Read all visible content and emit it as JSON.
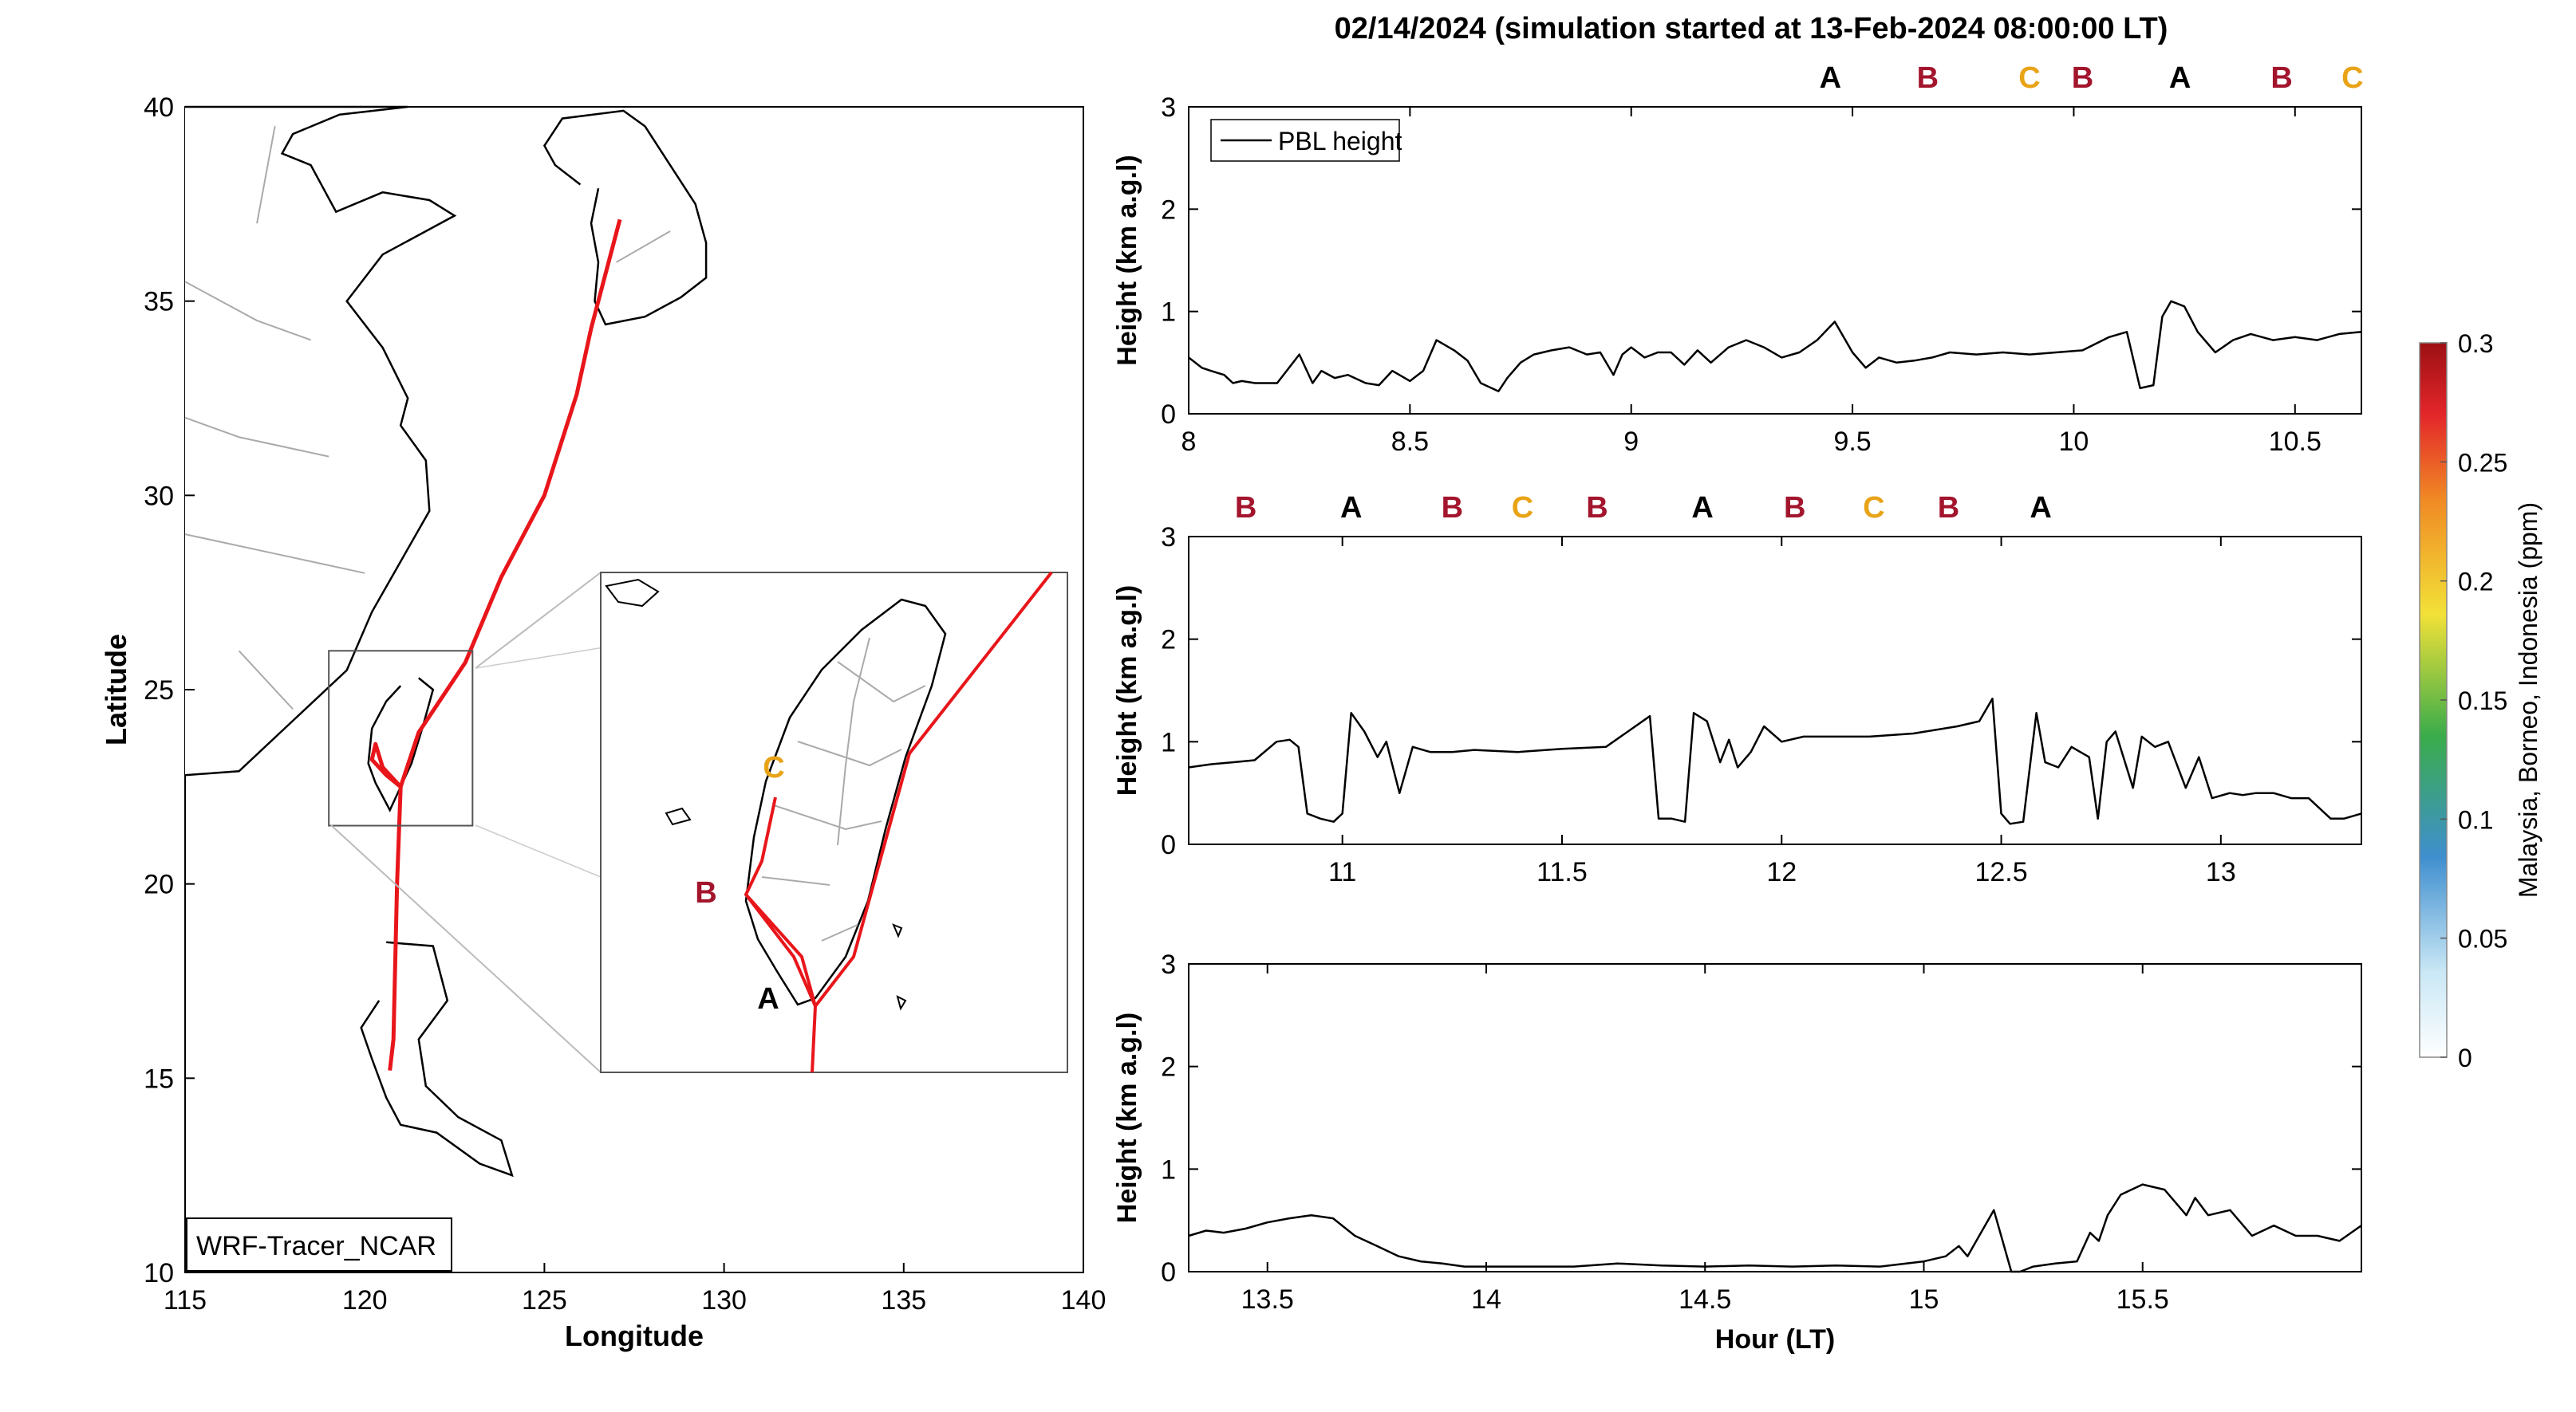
{
  "title": "02/14/2024 (simulation started at 13-Feb-2024 08:00:00 LT)",
  "map": {
    "xlabel": "Longitude",
    "ylabel": "Latitude",
    "xlim": [
      115,
      140
    ],
    "ylim": [
      10,
      40
    ],
    "xticks": [
      115,
      120,
      125,
      130,
      135,
      140
    ],
    "yticks": [
      10,
      15,
      20,
      25,
      30,
      35,
      40
    ],
    "tag": "WRF-Tracer_NCAR",
    "track_color": "#e8161b",
    "track": [
      [
        127.1,
        37.1
      ],
      [
        126.3,
        34.3
      ],
      [
        125.9,
        32.6
      ],
      [
        125.0,
        30.0
      ],
      [
        123.8,
        27.9
      ],
      [
        122.8,
        25.7
      ],
      [
        121.5,
        23.9
      ],
      [
        121.0,
        22.5
      ],
      [
        120.9,
        20.0
      ],
      [
        120.8,
        16.0
      ],
      [
        120.7,
        15.2
      ]
    ],
    "taiwan_branch": [
      [
        121.0,
        22.5
      ],
      [
        120.5,
        23.0
      ],
      [
        120.3,
        23.6
      ],
      [
        120.2,
        23.2
      ],
      [
        120.6,
        22.8
      ],
      [
        121.0,
        22.5
      ]
    ],
    "inset_box": {
      "lon": [
        119.0,
        123.0
      ],
      "lat": [
        21.5,
        26.0
      ]
    },
    "inset": {
      "markers": [
        {
          "label": "A",
          "color": "#000000"
        },
        {
          "label": "B",
          "color": "#a3152d"
        },
        {
          "label": "C",
          "color": "#e8a317"
        }
      ]
    }
  },
  "label_colors": {
    "A": "#000000",
    "B": "#a3152d",
    "C": "#e8a317"
  },
  "panels": [
    {
      "xlim": [
        8.0,
        10.65
      ],
      "xticks": [
        8,
        8.5,
        9,
        9.5,
        10,
        10.5
      ],
      "ylim": [
        0,
        3
      ],
      "yticks": [
        0,
        1,
        2,
        3
      ],
      "ylabel": "Height (km a.g.l)",
      "legend": "PBL height",
      "top_labels": [
        {
          "x": 9.45,
          "label": "A"
        },
        {
          "x": 9.67,
          "label": "B"
        },
        {
          "x": 9.9,
          "label": "C"
        },
        {
          "x": 10.02,
          "label": "B"
        },
        {
          "x": 10.24,
          "label": "A"
        },
        {
          "x": 10.47,
          "label": "B"
        },
        {
          "x": 10.63,
          "label": "C"
        }
      ]
    },
    {
      "xlim": [
        10.65,
        13.32
      ],
      "xticks": [
        11,
        11.5,
        12,
        12.5,
        13
      ],
      "ylim": [
        0,
        3
      ],
      "yticks": [
        0,
        1,
        2,
        3
      ],
      "ylabel": "Height (km a.g.l)",
      "top_labels": [
        {
          "x": 10.78,
          "label": "B"
        },
        {
          "x": 11.02,
          "label": "A"
        },
        {
          "x": 11.25,
          "label": "B"
        },
        {
          "x": 11.41,
          "label": "C"
        },
        {
          "x": 11.58,
          "label": "B"
        },
        {
          "x": 11.82,
          "label": "A"
        },
        {
          "x": 12.03,
          "label": "B"
        },
        {
          "x": 12.21,
          "label": "C"
        },
        {
          "x": 12.38,
          "label": "B"
        },
        {
          "x": 12.59,
          "label": "A"
        }
      ]
    },
    {
      "xlim": [
        13.32,
        16.0
      ],
      "xticks": [
        13.5,
        14,
        14.5,
        15,
        15.5
      ],
      "ylim": [
        0,
        3
      ],
      "yticks": [
        0,
        1,
        2,
        3
      ],
      "ylabel": "Height (km a.g.l)",
      "xlabel": "Hour (LT)"
    }
  ],
  "colorbar": {
    "label": "Malaysia, Borneo, Indonesia (ppm)",
    "ticks": [
      "0",
      "0.05",
      "0.1",
      "0.15",
      "0.2",
      "0.25",
      "0.3"
    ],
    "colors": [
      "#ffffff",
      "#c9e7f5",
      "#3f8fcf",
      "#3aac4a",
      "#f2e138",
      "#f08a24",
      "#e3262a",
      "#9c1014"
    ]
  },
  "chart_data": [
    {
      "type": "line",
      "series": [
        {
          "name": "PBL height",
          "x": [
            8.0,
            8.03,
            8.05,
            8.08,
            8.1,
            8.12,
            8.15,
            8.2,
            8.25,
            8.28,
            8.3,
            8.33,
            8.36,
            8.4,
            8.43,
            8.46,
            8.5,
            8.53,
            8.56,
            8.6,
            8.63,
            8.66,
            8.7,
            8.72,
            8.75,
            8.78,
            8.82,
            8.86,
            8.9,
            8.93,
            8.96,
            8.98,
            9.0,
            9.03,
            9.06,
            9.09,
            9.12,
            9.15,
            9.18,
            9.22,
            9.26,
            9.3,
            9.34,
            9.38,
            9.42,
            9.46,
            9.5,
            9.53,
            9.56,
            9.6,
            9.64,
            9.68,
            9.72,
            9.78,
            9.84,
            9.9,
            9.96,
            10.02,
            10.08,
            10.12,
            10.15,
            10.18,
            10.2,
            10.22,
            10.25,
            10.28,
            10.32,
            10.36,
            10.4,
            10.45,
            10.5,
            10.55,
            10.6,
            10.65
          ],
          "y": [
            0.55,
            0.45,
            0.42,
            0.38,
            0.3,
            0.32,
            0.3,
            0.3,
            0.58,
            0.3,
            0.42,
            0.35,
            0.38,
            0.3,
            0.28,
            0.42,
            0.32,
            0.42,
            0.72,
            0.62,
            0.52,
            0.3,
            0.22,
            0.35,
            0.5,
            0.58,
            0.62,
            0.65,
            0.58,
            0.6,
            0.38,
            0.58,
            0.65,
            0.55,
            0.6,
            0.6,
            0.48,
            0.62,
            0.5,
            0.65,
            0.72,
            0.65,
            0.55,
            0.6,
            0.72,
            0.9,
            0.6,
            0.45,
            0.55,
            0.5,
            0.52,
            0.55,
            0.6,
            0.58,
            0.6,
            0.58,
            0.6,
            0.62,
            0.75,
            0.8,
            0.25,
            0.28,
            0.95,
            1.1,
            1.05,
            0.8,
            0.6,
            0.72,
            0.78,
            0.72,
            0.75,
            0.72,
            0.78,
            0.8
          ]
        }
      ],
      "xlim": [
        8.0,
        10.65
      ],
      "ylim": [
        0,
        3
      ],
      "ylabel": "Height (km a.g.l)"
    },
    {
      "type": "line",
      "series": [
        {
          "name": "PBL height",
          "x": [
            10.65,
            10.7,
            10.75,
            10.8,
            10.85,
            10.88,
            10.9,
            10.92,
            10.95,
            10.98,
            11.0,
            11.02,
            11.05,
            11.08,
            11.1,
            11.13,
            11.16,
            11.2,
            11.25,
            11.3,
            11.4,
            11.5,
            11.6,
            11.65,
            11.7,
            11.72,
            11.75,
            11.78,
            11.8,
            11.83,
            11.86,
            11.88,
            11.9,
            11.93,
            11.96,
            12.0,
            12.05,
            12.1,
            12.2,
            12.3,
            12.4,
            12.45,
            12.48,
            12.5,
            12.52,
            12.55,
            12.58,
            12.6,
            12.63,
            12.66,
            12.7,
            12.72,
            12.74,
            12.76,
            12.8,
            12.82,
            12.85,
            12.88,
            12.92,
            12.95,
            12.98,
            13.02,
            13.05,
            13.08,
            13.12,
            13.16,
            13.2,
            13.25,
            13.28,
            13.32
          ],
          "y": [
            0.75,
            0.78,
            0.8,
            0.82,
            1.0,
            1.02,
            0.95,
            0.3,
            0.25,
            0.22,
            0.3,
            1.28,
            1.1,
            0.85,
            1.0,
            0.5,
            0.95,
            0.9,
            0.9,
            0.92,
            0.9,
            0.93,
            0.95,
            1.1,
            1.25,
            0.25,
            0.25,
            0.22,
            1.28,
            1.2,
            0.8,
            1.02,
            0.75,
            0.9,
            1.15,
            1.0,
            1.05,
            1.05,
            1.05,
            1.08,
            1.15,
            1.2,
            1.42,
            0.3,
            0.2,
            0.22,
            1.28,
            0.8,
            0.75,
            0.95,
            0.85,
            0.25,
            1.0,
            1.1,
            0.55,
            1.05,
            0.95,
            1.0,
            0.55,
            0.85,
            0.45,
            0.5,
            0.48,
            0.5,
            0.5,
            0.45,
            0.45,
            0.25,
            0.25,
            0.3
          ]
        }
      ],
      "xlim": [
        10.65,
        13.32
      ],
      "ylim": [
        0,
        3
      ],
      "ylabel": "Height (km a.g.l)"
    },
    {
      "type": "line",
      "series": [
        {
          "name": "PBL height",
          "x": [
            13.32,
            13.36,
            13.4,
            13.45,
            13.5,
            13.55,
            13.6,
            13.65,
            13.7,
            13.75,
            13.8,
            13.85,
            13.9,
            13.95,
            14.0,
            14.1,
            14.2,
            14.3,
            14.4,
            14.5,
            14.6,
            14.7,
            14.8,
            14.9,
            15.0,
            15.05,
            15.08,
            15.1,
            15.12,
            15.16,
            15.2,
            15.22,
            15.25,
            15.3,
            15.35,
            15.38,
            15.4,
            15.42,
            15.45,
            15.5,
            15.55,
            15.6,
            15.62,
            15.65,
            15.7,
            15.75,
            15.8,
            15.85,
            15.9,
            15.95,
            16.0
          ],
          "y": [
            0.35,
            0.4,
            0.38,
            0.42,
            0.48,
            0.52,
            0.55,
            0.52,
            0.35,
            0.25,
            0.15,
            0.1,
            0.08,
            0.05,
            0.05,
            0.05,
            0.05,
            0.08,
            0.06,
            0.05,
            0.06,
            0.05,
            0.06,
            0.05,
            0.1,
            0.15,
            0.25,
            0.15,
            0.3,
            0.6,
            0.0,
            0.0,
            0.05,
            0.08,
            0.1,
            0.38,
            0.3,
            0.55,
            0.75,
            0.85,
            0.8,
            0.55,
            0.72,
            0.55,
            0.6,
            0.35,
            0.45,
            0.35,
            0.35,
            0.3,
            0.45
          ]
        }
      ],
      "xlim": [
        13.32,
        16.0
      ],
      "ylim": [
        0,
        3
      ],
      "ylabel": "Height (km a.g.l)",
      "xlabel": "Hour (LT)"
    }
  ]
}
